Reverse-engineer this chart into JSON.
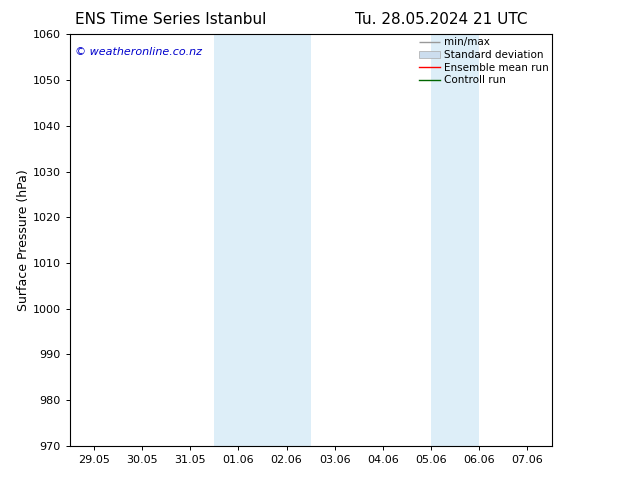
{
  "title_left": "ENS Time Series Istanbul",
  "title_right": "Tu. 28.05.2024 21 UTC",
  "ylabel": "Surface Pressure (hPa)",
  "ylim": [
    970,
    1060
  ],
  "yticks": [
    970,
    980,
    990,
    1000,
    1010,
    1020,
    1030,
    1040,
    1050,
    1060
  ],
  "x_tick_labels": [
    "29.05",
    "30.05",
    "31.05",
    "01.06",
    "02.06",
    "03.06",
    "04.06",
    "05.06",
    "06.06",
    "07.06"
  ],
  "x_tick_positions": [
    0,
    1,
    2,
    3,
    4,
    5,
    6,
    7,
    8,
    9
  ],
  "xlim": [
    -0.5,
    9.5
  ],
  "shaded_regions": [
    {
      "x_start": 2.5,
      "x_end": 4.5,
      "color": "#ddeef8"
    },
    {
      "x_start": 7.0,
      "x_end": 8.0,
      "color": "#ddeef8"
    }
  ],
  "watermark_text": "© weatheronline.co.nz",
  "watermark_color": "#0000cc",
  "background_color": "#ffffff",
  "tick_font_size": 8,
  "label_font_size": 9,
  "title_font_size": 11
}
